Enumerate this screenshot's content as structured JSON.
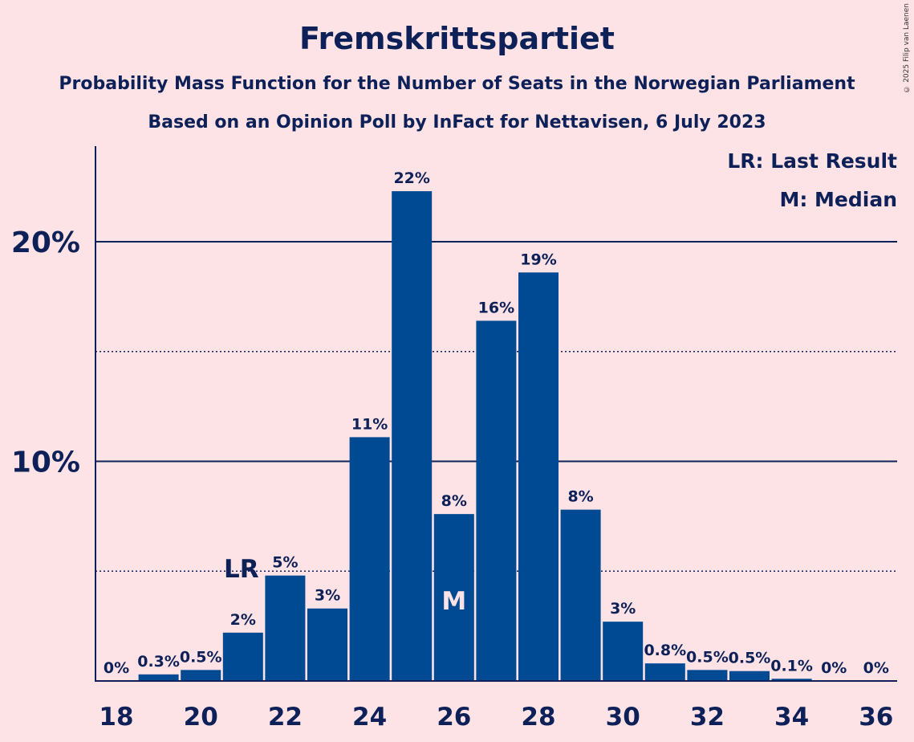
{
  "title": "Fremskrittspartiet",
  "subtitle1": "Probability Mass Function for the Number of Seats in the Norwegian Parliament",
  "subtitle2": "Based on an Opinion Poll by InFact for Nettavisen, 6 July 2023",
  "copyright": "© 2025 Filip van Laenen",
  "legend": {
    "lr": "LR: Last Result",
    "m": "M: Median"
  },
  "colors": {
    "bar": "#004a93",
    "background": "#fde3e5",
    "text": "#0d2158"
  },
  "chart_data": {
    "type": "bar",
    "x": [
      18,
      19,
      20,
      21,
      22,
      23,
      24,
      25,
      26,
      27,
      28,
      29,
      30,
      31,
      32,
      33,
      34,
      35,
      36
    ],
    "values": [
      0,
      0.3,
      0.5,
      2.2,
      4.8,
      3.3,
      11.1,
      22.3,
      7.6,
      16.4,
      18.6,
      7.8,
      2.7,
      0.8,
      0.5,
      0.45,
      0.1,
      0,
      0
    ],
    "labels": [
      "0%",
      "0.3%",
      "0.5%",
      "2%",
      "5%",
      "3%",
      "11%",
      "22%",
      "8%",
      "16%",
      "19%",
      "8%",
      "3%",
      "0.8%",
      "0.5%",
      "0.5%",
      "0.1%",
      "0%",
      "0%"
    ],
    "x_ticks": [
      "18",
      "20",
      "22",
      "24",
      "26",
      "28",
      "30",
      "32",
      "34",
      "36"
    ],
    "y_ticks": [
      "10%",
      "20%"
    ],
    "ylim": [
      0,
      24.4
    ],
    "major_grid": [
      10,
      20
    ],
    "minor_grid": [
      5,
      15
    ],
    "last_result": {
      "x": 21,
      "label": "LR"
    },
    "median": {
      "x": 26,
      "label": "M"
    },
    "legend_position": "top-right"
  }
}
